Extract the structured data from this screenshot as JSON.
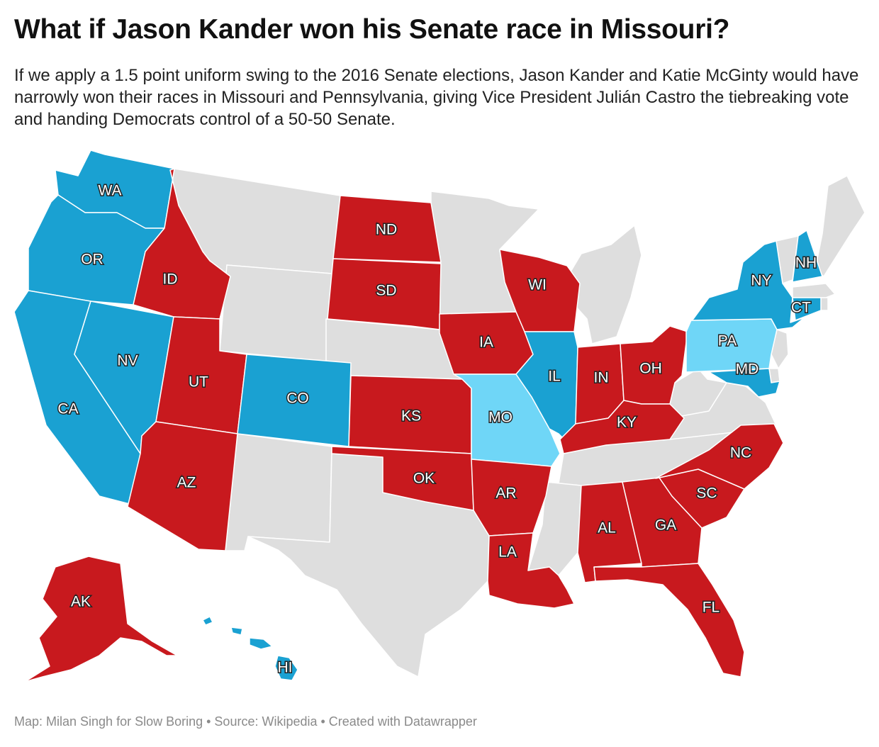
{
  "title": "What if Jason Kander won his Senate race in Missouri?",
  "subtitle": "If we apply a 1.5 point uniform swing to the 2016 Senate elections, Jason Kander and Katie McGinty would have narrowly won their races in Missouri and Pennsylvania, giving Vice President Julián Castro the tiebreaking vote and handing Democrats control of a 50-50 Senate.",
  "footer": "Map: Milan Singh for Slow Boring • Source: Wikipedia • Created with Datawrapper",
  "colors": {
    "republican_hold": "#c8191e",
    "democratic_hold": "#1aa1d2",
    "democratic_flip": "#6fd6f7",
    "no_race": "#dedede"
  },
  "states": {
    "WA": {
      "label": "WA",
      "result": "democratic_hold"
    },
    "OR": {
      "label": "OR",
      "result": "democratic_hold"
    },
    "CA": {
      "label": "CA",
      "result": "democratic_hold"
    },
    "NV": {
      "label": "NV",
      "result": "democratic_hold"
    },
    "ID": {
      "label": "ID",
      "result": "republican_hold"
    },
    "UT": {
      "label": "UT",
      "result": "republican_hold"
    },
    "AZ": {
      "label": "AZ",
      "result": "republican_hold"
    },
    "CO": {
      "label": "CO",
      "result": "democratic_hold"
    },
    "ND": {
      "label": "ND",
      "result": "republican_hold"
    },
    "SD": {
      "label": "SD",
      "result": "republican_hold"
    },
    "KS": {
      "label": "KS",
      "result": "republican_hold"
    },
    "OK": {
      "label": "OK",
      "result": "republican_hold"
    },
    "IA": {
      "label": "IA",
      "result": "republican_hold"
    },
    "MO": {
      "label": "MO",
      "result": "democratic_flip"
    },
    "AR": {
      "label": "AR",
      "result": "republican_hold"
    },
    "LA": {
      "label": "LA",
      "result": "republican_hold"
    },
    "WI": {
      "label": "WI",
      "result": "republican_hold"
    },
    "IL": {
      "label": "IL",
      "result": "democratic_hold"
    },
    "IN": {
      "label": "IN",
      "result": "republican_hold"
    },
    "OH": {
      "label": "OH",
      "result": "republican_hold"
    },
    "KY": {
      "label": "KY",
      "result": "republican_hold"
    },
    "AL": {
      "label": "AL",
      "result": "republican_hold"
    },
    "GA": {
      "label": "GA",
      "result": "republican_hold"
    },
    "FL": {
      "label": "FL",
      "result": "republican_hold"
    },
    "SC": {
      "label": "SC",
      "result": "republican_hold"
    },
    "NC": {
      "label": "NC",
      "result": "republican_hold"
    },
    "PA": {
      "label": "PA",
      "result": "democratic_flip"
    },
    "MD": {
      "label": "MD",
      "result": "democratic_hold"
    },
    "NY": {
      "label": "NY",
      "result": "democratic_hold"
    },
    "CT": {
      "label": "CT",
      "result": "democratic_hold"
    },
    "NH": {
      "label": "NH",
      "result": "democratic_hold"
    },
    "AK": {
      "label": "AK",
      "result": "republican_hold"
    },
    "HI": {
      "label": "HI",
      "result": "democratic_hold"
    }
  }
}
